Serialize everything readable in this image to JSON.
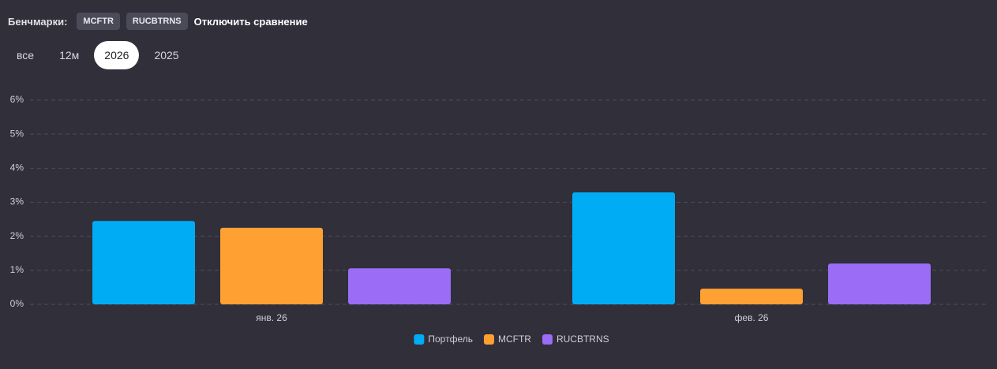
{
  "header": {
    "label": "Бенчмарки:",
    "benchmarks": [
      "MCFTR",
      "RUCBTRNS"
    ],
    "disable_link": "Отключить сравнение"
  },
  "tabs": {
    "items": [
      "все",
      "12м",
      "2026",
      "2025"
    ],
    "active": 2
  },
  "chart_data": {
    "type": "bar",
    "categories": [
      "янв. 26",
      "фев. 26"
    ],
    "series": [
      {
        "name": "Портфель",
        "color": "#00adf5",
        "values": [
          2.45,
          3.29
        ]
      },
      {
        "name": "MCFTR",
        "color": "#ffa033",
        "values": [
          2.25,
          0.46
        ]
      },
      {
        "name": "RUCBTRNS",
        "color": "#9b6cf5",
        "values": [
          1.06,
          1.2
        ]
      }
    ],
    "ylim": [
      0,
      6
    ],
    "yticks": [
      {
        "value": 0,
        "label": "0%"
      },
      {
        "value": 1,
        "label": "1%"
      },
      {
        "value": 2,
        "label": "2%"
      },
      {
        "value": 3,
        "label": "3%"
      },
      {
        "value": 4,
        "label": "4%"
      },
      {
        "value": 5,
        "label": "5%"
      },
      {
        "value": 6,
        "label": "6%"
      }
    ],
    "grid": true,
    "legend": "bottom"
  }
}
